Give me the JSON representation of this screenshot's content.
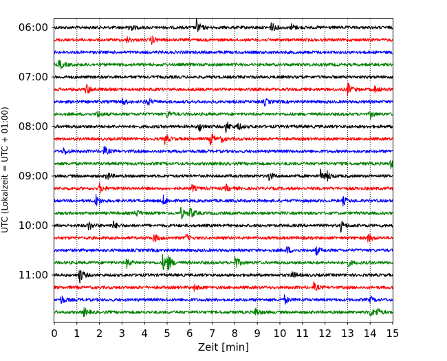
{
  "chart_data": {
    "type": "line",
    "title": "",
    "xlabel": "Zeit  [min]",
    "ylabel": "UTC (Lokalzeit = UTC + 01:00)",
    "xlim": [
      0,
      15
    ],
    "x_ticks": [
      0,
      1,
      2,
      3,
      4,
      5,
      6,
      7,
      8,
      9,
      10,
      11,
      12,
      13,
      14,
      15
    ],
    "x_tick_labels": [
      "0",
      "1",
      "2",
      "3",
      "4",
      "5",
      "6",
      "7",
      "8",
      "9",
      "10",
      "11",
      "12",
      "13",
      "14",
      "15"
    ],
    "y_ticks": [
      {
        "label": "06:00",
        "trace_index": 0
      },
      {
        "label": "07:00",
        "trace_index": 4
      },
      {
        "label": "08:00",
        "trace_index": 8
      },
      {
        "label": "09:00",
        "trace_index": 12
      },
      {
        "label": "10:00",
        "trace_index": 16
      },
      {
        "label": "11:00",
        "trace_index": 20
      }
    ],
    "grid": {
      "x": true,
      "style": "dotted"
    },
    "trace_minutes": 15,
    "trace_colors": [
      "#000000",
      "#ff0000",
      "#0000ff",
      "#008000"
    ],
    "trace_count": 24,
    "events": [
      {
        "trace": 0,
        "t": 3.3,
        "amp": 1.3
      },
      {
        "trace": 0,
        "t": 6.3,
        "amp": 2.0
      },
      {
        "trace": 0,
        "t": 9.6,
        "amp": 1.4
      },
      {
        "trace": 0,
        "t": 10.5,
        "amp": 0.9
      },
      {
        "trace": 1,
        "t": 3.2,
        "amp": 0.8
      },
      {
        "trace": 1,
        "t": 4.3,
        "amp": 1.2
      },
      {
        "trace": 3,
        "t": 0.2,
        "amp": 1.6
      },
      {
        "trace": 5,
        "t": 1.4,
        "amp": 1.6
      },
      {
        "trace": 5,
        "t": 13.0,
        "amp": 1.7
      },
      {
        "trace": 5,
        "t": 14.2,
        "amp": 0.9
      },
      {
        "trace": 6,
        "t": 3.0,
        "amp": 1.0
      },
      {
        "trace": 6,
        "t": 4.1,
        "amp": 1.3
      },
      {
        "trace": 6,
        "t": 9.3,
        "amp": 1.0
      },
      {
        "trace": 7,
        "t": 1.9,
        "amp": 1.0
      },
      {
        "trace": 7,
        "t": 5.0,
        "amp": 1.0
      },
      {
        "trace": 7,
        "t": 14.0,
        "amp": 1.1
      },
      {
        "trace": 8,
        "t": 6.4,
        "amp": 1.4
      },
      {
        "trace": 8,
        "t": 7.6,
        "amp": 1.6
      },
      {
        "trace": 8,
        "t": 8.1,
        "amp": 1.2
      },
      {
        "trace": 9,
        "t": 4.9,
        "amp": 1.3
      },
      {
        "trace": 9,
        "t": 6.9,
        "amp": 2.2
      },
      {
        "trace": 9,
        "t": 7.4,
        "amp": 0.8
      },
      {
        "trace": 10,
        "t": 0.4,
        "amp": 1.1
      },
      {
        "trace": 10,
        "t": 2.2,
        "amp": 1.2
      },
      {
        "trace": 11,
        "t": 14.9,
        "amp": 1.2
      },
      {
        "trace": 12,
        "t": 2.3,
        "amp": 1.2
      },
      {
        "trace": 12,
        "t": 9.5,
        "amp": 1.4
      },
      {
        "trace": 12,
        "t": 11.8,
        "amp": 1.5
      },
      {
        "trace": 12,
        "t": 12.1,
        "amp": 1.0
      },
      {
        "trace": 13,
        "t": 2.0,
        "amp": 1.3
      },
      {
        "trace": 13,
        "t": 6.1,
        "amp": 0.9
      },
      {
        "trace": 13,
        "t": 7.6,
        "amp": 1.0
      },
      {
        "trace": 14,
        "t": 1.8,
        "amp": 2.1
      },
      {
        "trace": 14,
        "t": 4.8,
        "amp": 1.5
      },
      {
        "trace": 14,
        "t": 12.8,
        "amp": 1.0
      },
      {
        "trace": 15,
        "t": 3.6,
        "amp": 1.1
      },
      {
        "trace": 15,
        "t": 5.6,
        "amp": 1.7
      },
      {
        "trace": 15,
        "t": 6.0,
        "amp": 1.8
      },
      {
        "trace": 16,
        "t": 1.5,
        "amp": 1.3
      },
      {
        "trace": 16,
        "t": 2.6,
        "amp": 1.1
      },
      {
        "trace": 16,
        "t": 12.7,
        "amp": 1.4
      },
      {
        "trace": 17,
        "t": 4.4,
        "amp": 1.3
      },
      {
        "trace": 17,
        "t": 5.8,
        "amp": 1.0
      },
      {
        "trace": 17,
        "t": 13.9,
        "amp": 1.2
      },
      {
        "trace": 18,
        "t": 10.3,
        "amp": 1.1
      },
      {
        "trace": 18,
        "t": 11.6,
        "amp": 1.2
      },
      {
        "trace": 19,
        "t": 3.2,
        "amp": 1.3
      },
      {
        "trace": 19,
        "t": 4.8,
        "amp": 2.0
      },
      {
        "trace": 19,
        "t": 5.0,
        "amp": 2.4
      },
      {
        "trace": 19,
        "t": 8.0,
        "amp": 2.0
      },
      {
        "trace": 19,
        "t": 13.0,
        "amp": 1.0
      },
      {
        "trace": 20,
        "t": 1.1,
        "amp": 2.3
      },
      {
        "trace": 20,
        "t": 10.5,
        "amp": 1.2
      },
      {
        "trace": 21,
        "t": 6.2,
        "amp": 0.8
      },
      {
        "trace": 21,
        "t": 11.5,
        "amp": 1.1
      },
      {
        "trace": 22,
        "t": 0.3,
        "amp": 1.2
      },
      {
        "trace": 22,
        "t": 10.2,
        "amp": 1.1
      },
      {
        "trace": 22,
        "t": 14.0,
        "amp": 0.8
      },
      {
        "trace": 23,
        "t": 1.3,
        "amp": 1.1
      },
      {
        "trace": 23,
        "t": 8.9,
        "amp": 1.3
      },
      {
        "trace": 23,
        "t": 14.0,
        "amp": 1.3
      },
      {
        "trace": 23,
        "t": 14.3,
        "amp": 1.1
      }
    ]
  }
}
